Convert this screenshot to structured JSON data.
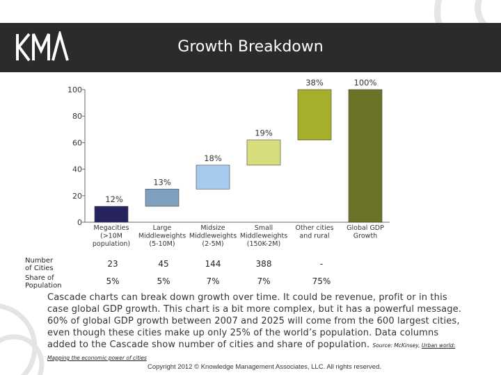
{
  "logo_text": "KMA",
  "title": "Growth Breakdown",
  "chart_data": {
    "type": "bar",
    "subtype": "waterfall",
    "categories": [
      [
        "Megacities",
        "(>10M",
        "population)"
      ],
      [
        "Large",
        "Middleweights",
        "(5-10M)"
      ],
      [
        "Midsize",
        "Middleweights",
        "(2-5M)"
      ],
      [
        "Small",
        "Middleweights",
        "(150K-2M)"
      ],
      [
        "Other cities",
        "and rural"
      ],
      [
        "Global GDP",
        "Growth"
      ]
    ],
    "bars": [
      {
        "start": 0,
        "end": 12,
        "label": "12%",
        "color": "#26235e"
      },
      {
        "start": 12,
        "end": 25,
        "label": "13%",
        "color": "#7f9fbf"
      },
      {
        "start": 25,
        "end": 43,
        "label": "18%",
        "color": "#a7cbee"
      },
      {
        "start": 43,
        "end": 62,
        "label": "19%",
        "color": "#d7dc7c"
      },
      {
        "start": 62,
        "end": 100,
        "label": "38%",
        "color": "#a6ae2c"
      },
      {
        "start": 0,
        "end": 100,
        "label": "100%",
        "color": "#6b7326"
      }
    ],
    "y_ticks": [
      0,
      20,
      40,
      60,
      80,
      100
    ],
    "ylim": [
      0,
      100
    ],
    "grid": false
  },
  "table": {
    "rows": [
      {
        "label": [
          "Number",
          "of Cities"
        ],
        "values": [
          "23",
          "45",
          "144",
          "388",
          "-"
        ]
      },
      {
        "label": [
          "Share of",
          "Population"
        ],
        "values": [
          "5%",
          "5%",
          "7%",
          "7%",
          "75%"
        ]
      }
    ]
  },
  "description": "Cascade charts can break down growth over time. It could be revenue, profit or in this case global GDP growth.  This chart is a bit more complex, but it has a powerful message. 60% of global GDP growth between 2007 and 2025 will come from the 600 largest cities, even though these cities make up only 25% of the world’s population.  Data columns added to the Cascade show number of cities and share of population.",
  "source": {
    "prefix": "Source: McKinsey,",
    "link": "Urban world: Mapping the economic power of cities"
  },
  "copyright": "Copyright 2012 © Knowledge Management Associates, LLC.  All rights reserved."
}
